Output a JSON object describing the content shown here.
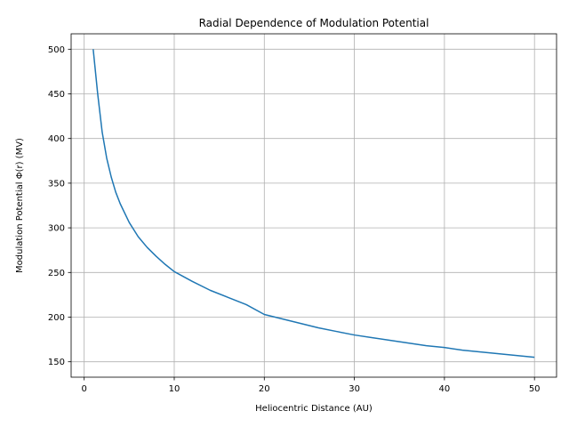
{
  "chart_data": {
    "type": "line",
    "title": "Radial Dependence of Modulation Potential",
    "xlabel": "Heliocentric Distance (AU)",
    "ylabel": "Modulation Potential Φ(r) (MV)",
    "xlim": [
      -1.45,
      52.45
    ],
    "ylim": [
      132.75,
      517.25
    ],
    "xticks": [
      0,
      10,
      20,
      30,
      40,
      50
    ],
    "yticks": [
      150,
      200,
      250,
      300,
      350,
      400,
      450,
      500
    ],
    "grid": true,
    "series": [
      {
        "color": "#1f77b4",
        "x": [
          1,
          1.5,
          2,
          2.5,
          3,
          3.5,
          4,
          5,
          6,
          7,
          8,
          9,
          10,
          12,
          14,
          16,
          18,
          20,
          22,
          24,
          26,
          28,
          30,
          32,
          34,
          36,
          38,
          40,
          42,
          44,
          46,
          48,
          50
        ],
        "y": [
          500,
          450,
          407,
          378,
          357,
          340,
          327,
          306,
          290,
          278,
          268,
          259,
          251,
          240,
          230,
          222,
          214,
          203,
          198,
          193,
          188,
          184,
          180,
          177,
          174,
          171,
          168,
          166,
          163,
          161,
          159,
          157,
          155
        ]
      }
    ]
  }
}
